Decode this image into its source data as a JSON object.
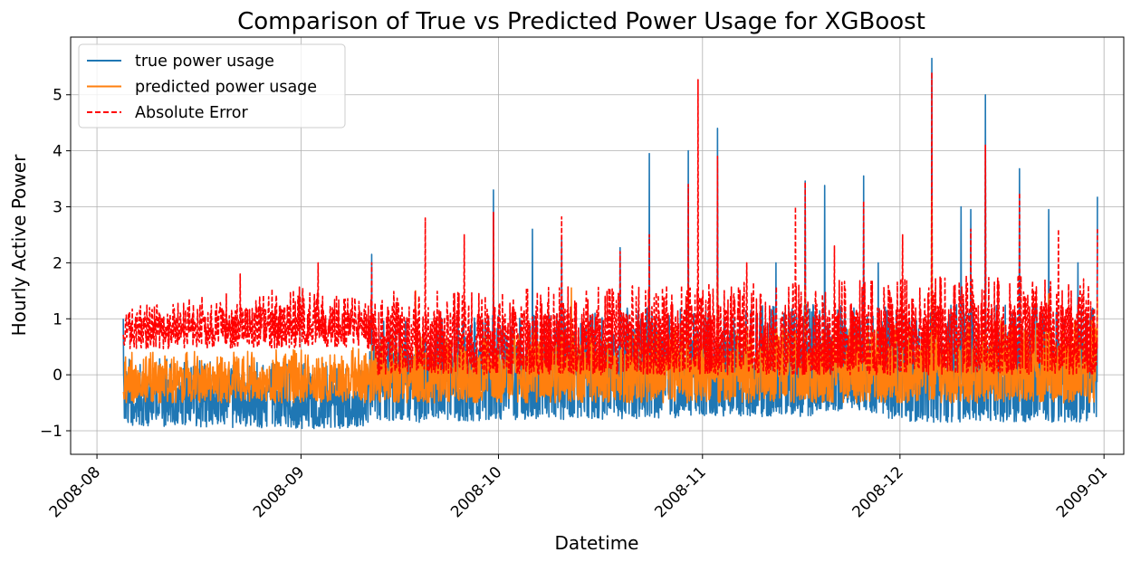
{
  "chart_data": {
    "type": "line",
    "title": "Comparison of True vs Predicted Power Usage for XGBoost",
    "xlabel": "Datetime",
    "ylabel": "Hourly Active Power",
    "x_ticks": [
      "2008-08",
      "2008-09",
      "2008-10",
      "2008-11",
      "2008-12",
      "2009-01"
    ],
    "y_ticks": [
      "−1",
      "0",
      "1",
      "2",
      "3",
      "4",
      "5"
    ],
    "xlim": [
      "2008-07-28",
      "2009-01-04"
    ],
    "ylim": [
      -1.42,
      6.03
    ],
    "x_range": [
      "2008-08-05",
      "2008-12-31"
    ],
    "grid": true,
    "legend_position": "top-left",
    "series": [
      {
        "name": "true power usage",
        "color": "#1f77b4",
        "style": "solid",
        "envelope": {
          "low": [
            [
              0,
              -0.9
            ],
            [
              0.06,
              -0.93
            ],
            [
              0.13,
              -0.95
            ],
            [
              0.2,
              -0.96
            ],
            [
              0.25,
              -0.95
            ],
            [
              0.255,
              -0.8
            ],
            [
              0.3,
              -0.85
            ],
            [
              0.4,
              -0.8
            ],
            [
              0.5,
              -0.8
            ],
            [
              0.6,
              -0.75
            ],
            [
              0.7,
              -0.75
            ],
            [
              0.75,
              -0.6
            ],
            [
              0.8,
              -0.85
            ],
            [
              0.86,
              -0.85
            ],
            [
              0.9,
              -0.85
            ],
            [
              1.0,
              -0.85
            ]
          ],
          "base_high": [
            [
              0,
              0.3
            ],
            [
              0.25,
              0.2
            ],
            [
              0.26,
              1.0
            ],
            [
              0.4,
              1.1
            ],
            [
              0.5,
              1.2
            ],
            [
              0.6,
              1.2
            ],
            [
              0.75,
              1.3
            ],
            [
              0.9,
              1.3
            ],
            [
              1.0,
              1.2
            ]
          ]
        },
        "peaks": [
          [
            0.0,
            1.0
          ],
          [
            0.255,
            2.15
          ],
          [
            0.38,
            3.3
          ],
          [
            0.42,
            2.6
          ],
          [
            0.45,
            2.45
          ],
          [
            0.51,
            2.27
          ],
          [
            0.54,
            3.95
          ],
          [
            0.58,
            4.0
          ],
          [
            0.61,
            4.4
          ],
          [
            0.67,
            2.0
          ],
          [
            0.7,
            3.46
          ],
          [
            0.72,
            3.38
          ],
          [
            0.76,
            3.55
          ],
          [
            0.775,
            2.0
          ],
          [
            0.83,
            5.65
          ],
          [
            0.86,
            3.0
          ],
          [
            0.87,
            2.95
          ],
          [
            0.885,
            5.0
          ],
          [
            0.92,
            3.68
          ],
          [
            0.95,
            2.95
          ],
          [
            0.98,
            2.0
          ],
          [
            1.0,
            3.18
          ]
        ]
      },
      {
        "name": "predicted power usage",
        "color": "#ff7f0e",
        "style": "solid",
        "envelope": {
          "low": [
            [
              0,
              -0.5
            ],
            [
              0.25,
              -0.5
            ],
            [
              0.26,
              -0.5
            ],
            [
              1.0,
              -0.5
            ]
          ],
          "base_high": [
            [
              0,
              0.4
            ],
            [
              0.25,
              0.5
            ],
            [
              0.26,
              0.7
            ],
            [
              0.5,
              0.8
            ],
            [
              0.75,
              0.9
            ],
            [
              0.9,
              1.0
            ],
            [
              1.0,
              1.0
            ]
          ]
        },
        "peaks": [
          [
            0.3,
            1.5
          ],
          [
            0.46,
            1.55
          ],
          [
            0.58,
            1.6
          ],
          [
            0.61,
            1.7
          ],
          [
            0.7,
            1.6
          ],
          [
            0.83,
            3.2
          ],
          [
            0.95,
            1.45
          ],
          [
            1.0,
            1.35
          ]
        ]
      },
      {
        "name": "Absolute Error",
        "color": "#ff0000",
        "style": "dashed",
        "envelope": {
          "low": [
            [
              0,
              0.45
            ],
            [
              0.25,
              0.5
            ],
            [
              0.26,
              0.0
            ],
            [
              0.5,
              0.0
            ],
            [
              1.0,
              0.0
            ]
          ],
          "base_high": [
            [
              0,
              1.2
            ],
            [
              0.12,
              1.5
            ],
            [
              0.2,
              1.6
            ],
            [
              0.25,
              1.3
            ],
            [
              0.26,
              1.5
            ],
            [
              0.5,
              1.6
            ],
            [
              0.75,
              1.7
            ],
            [
              0.9,
              1.8
            ],
            [
              1.0,
              1.7
            ]
          ]
        },
        "peaks": [
          [
            0.12,
            1.8
          ],
          [
            0.2,
            2.0
          ],
          [
            0.255,
            2.0
          ],
          [
            0.31,
            2.8
          ],
          [
            0.35,
            2.5
          ],
          [
            0.38,
            2.9
          ],
          [
            0.45,
            2.82
          ],
          [
            0.51,
            2.2
          ],
          [
            0.54,
            2.5
          ],
          [
            0.58,
            3.4
          ],
          [
            0.59,
            5.27
          ],
          [
            0.61,
            3.9
          ],
          [
            0.64,
            2.0
          ],
          [
            0.69,
            3.0
          ],
          [
            0.7,
            3.44
          ],
          [
            0.73,
            2.3
          ],
          [
            0.76,
            3.1
          ],
          [
            0.8,
            2.5
          ],
          [
            0.83,
            5.4
          ],
          [
            0.87,
            2.6
          ],
          [
            0.885,
            4.1
          ],
          [
            0.92,
            3.25
          ],
          [
            0.96,
            2.6
          ],
          [
            1.0,
            2.6
          ]
        ]
      }
    ]
  }
}
